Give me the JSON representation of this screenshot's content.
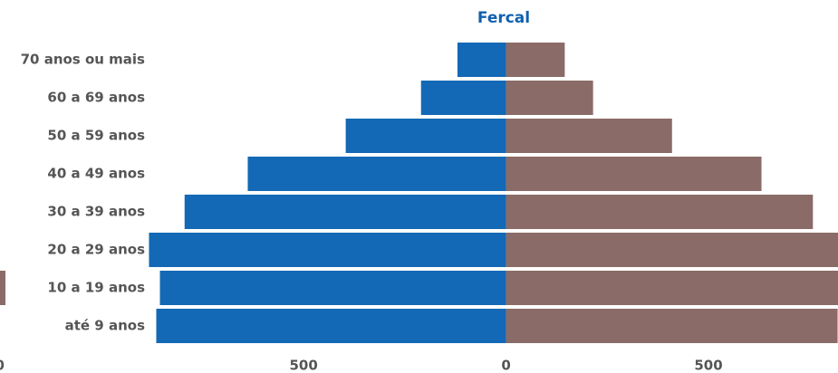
{
  "chart_data": {
    "type": "pyramid",
    "title": "Fercal",
    "categories": [
      "70 anos ou mais",
      "60 a 69 anos",
      "50 a 59 anos",
      "40 a 49 anos",
      "30 a 39 anos",
      "20 a 29 anos",
      "10 a 19 anos",
      "até 9 anos"
    ],
    "series": [
      {
        "color": "#1369b5",
        "side": "left",
        "values": [
          120,
          210,
          396,
          638,
          794,
          882,
          855,
          864
        ]
      },
      {
        "color": "#8b6b67",
        "side": "right",
        "values": [
          145,
          215,
          410,
          631,
          758,
          850,
          845,
          819
        ]
      }
    ],
    "xlim": [
      -1250,
      820
    ],
    "xticks": [
      {
        "value": -500,
        "label": "500"
      },
      0,
      500
    ]
  },
  "left_fragment_label": "00"
}
